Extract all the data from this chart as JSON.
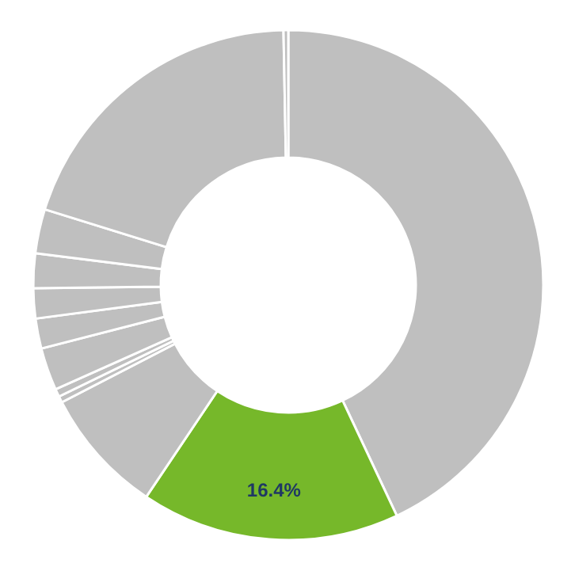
{
  "chart_data": {
    "type": "donut",
    "categories": [
      null,
      null,
      null,
      null,
      null,
      null,
      null,
      null,
      null,
      null,
      null,
      null
    ],
    "values": [
      43.0,
      16.4,
      8.0,
      0.4,
      0.5,
      2.7,
      1.9,
      1.9,
      2.2,
      2.8,
      19.9,
      0.3
    ],
    "colors": [
      "#bfbfbf",
      "#76b82a",
      "#bfbfbf",
      "#bfbfbf",
      "#bfbfbf",
      "#bfbfbf",
      "#bfbfbf",
      "#bfbfbf",
      "#bfbfbf",
      "#bfbfbf",
      "#bfbfbf",
      "#bfbfbf"
    ],
    "value_labels": [
      null,
      "16.4%",
      null,
      null,
      null,
      null,
      null,
      null,
      null,
      null,
      null,
      null
    ]
  }
}
